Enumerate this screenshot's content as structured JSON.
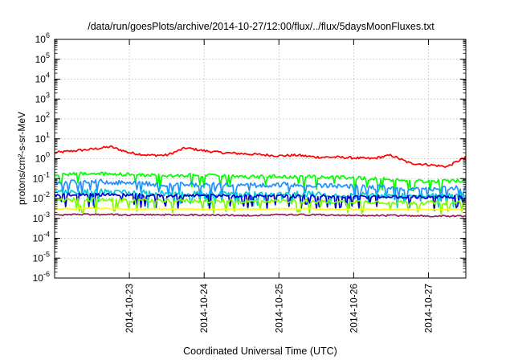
{
  "chart_data": {
    "type": "line",
    "title": "/data/run/goesPlots/archive/2014-10-27/12:00/flux/../flux/5daysMoonFluxes.txt",
    "xlabel": "Coordinated Universal Time (UTC)",
    "ylabel": "protons/cm²-s-sr-MeV",
    "y_scale": "log",
    "ylim": [
      1e-06,
      1000000.0
    ],
    "xlim": [
      "2014-10-22 00:00",
      "2014-10-27 12:00"
    ],
    "y_ticks": [
      {
        "base": "10",
        "exp": "6"
      },
      {
        "base": "10",
        "exp": "5"
      },
      {
        "base": "10",
        "exp": "4"
      },
      {
        "base": "10",
        "exp": "3"
      },
      {
        "base": "10",
        "exp": "2"
      },
      {
        "base": "10",
        "exp": "1"
      },
      {
        "base": "10",
        "exp": "0"
      },
      {
        "base": "10",
        "exp": "-1"
      },
      {
        "base": "10",
        "exp": "-2"
      },
      {
        "base": "10",
        "exp": "-3"
      },
      {
        "base": "10",
        "exp": "-4"
      },
      {
        "base": "10",
        "exp": "-5"
      },
      {
        "base": "10",
        "exp": "-6"
      }
    ],
    "x_ticks": [
      "2014-10-23",
      "2014-10-24",
      "2014-10-25",
      "2014-10-26",
      "2014-10-27"
    ],
    "grid": true,
    "legend": "none",
    "series": [
      {
        "color": "#ff0000",
        "x": [
          "2014-10-22 00:00",
          "2014-10-22 06:00",
          "2014-10-22 12:00",
          "2014-10-22 18:00",
          "2014-10-23 00:00",
          "2014-10-23 06:00",
          "2014-10-23 12:00",
          "2014-10-23 18:00",
          "2014-10-24 00:00",
          "2014-10-24 06:00",
          "2014-10-24 12:00",
          "2014-10-24 18:00",
          "2014-10-25 00:00",
          "2014-10-25 06:00",
          "2014-10-25 12:00",
          "2014-10-25 18:00",
          "2014-10-26 00:00",
          "2014-10-26 06:00",
          "2014-10-26 12:00",
          "2014-10-26 18:00",
          "2014-10-27 00:00",
          "2014-10-27 06:00",
          "2014-10-27 12:00"
        ],
        "y": [
          2.0,
          2.5,
          3.0,
          4.0,
          2.0,
          1.5,
          1.5,
          3.5,
          2.5,
          2.0,
          1.8,
          1.6,
          1.4,
          1.5,
          1.2,
          1.2,
          1.1,
          1.0,
          1.5,
          0.6,
          0.5,
          0.4,
          1.2
        ]
      },
      {
        "color": "#00ff00",
        "x": [
          "2014-10-22 00:00",
          "2014-10-22 12:00",
          "2014-10-23 00:00",
          "2014-10-23 12:00",
          "2014-10-24 00:00",
          "2014-10-24 12:00",
          "2014-10-25 00:00",
          "2014-10-25 12:00",
          "2014-10-26 00:00",
          "2014-10-26 12:00",
          "2014-10-27 00:00",
          "2014-10-27 12:00"
        ],
        "y": [
          0.15,
          0.18,
          0.16,
          0.14,
          0.15,
          0.12,
          0.13,
          0.12,
          0.11,
          0.09,
          0.07,
          0.08
        ]
      },
      {
        "color": "#1e90ff",
        "x": [
          "2014-10-22 00:00",
          "2014-10-22 12:00",
          "2014-10-23 00:00",
          "2014-10-23 12:00",
          "2014-10-24 00:00",
          "2014-10-24 12:00",
          "2014-10-25 00:00",
          "2014-10-25 12:00",
          "2014-10-26 00:00",
          "2014-10-26 12:00",
          "2014-10-27 00:00",
          "2014-10-27 12:00"
        ],
        "y": [
          0.06,
          0.07,
          0.06,
          0.05,
          0.05,
          0.045,
          0.05,
          0.045,
          0.04,
          0.035,
          0.03,
          0.035
        ]
      },
      {
        "color": "#00ced1",
        "x": [
          "2014-10-22 00:00",
          "2014-10-22 12:00",
          "2014-10-23 00:00",
          "2014-10-23 12:00",
          "2014-10-24 00:00",
          "2014-10-24 12:00",
          "2014-10-25 00:00",
          "2014-10-25 12:00",
          "2014-10-26 00:00",
          "2014-10-26 12:00",
          "2014-10-27 00:00",
          "2014-10-27 12:00"
        ],
        "y": [
          0.02,
          0.022,
          0.02,
          0.018,
          0.018,
          0.016,
          0.017,
          0.016,
          0.015,
          0.014,
          0.013,
          0.014
        ]
      },
      {
        "color": "#0000cd",
        "x": [
          "2014-10-22 00:00",
          "2014-10-22 12:00",
          "2014-10-23 00:00",
          "2014-10-23 12:00",
          "2014-10-24 00:00",
          "2014-10-24 12:00",
          "2014-10-25 00:00",
          "2014-10-25 12:00",
          "2014-10-26 00:00",
          "2014-10-26 12:00",
          "2014-10-27 00:00",
          "2014-10-27 12:00"
        ],
        "y": [
          0.015,
          0.016,
          0.015,
          0.014,
          0.014,
          0.013,
          0.013,
          0.013,
          0.012,
          0.012,
          0.012,
          0.012
        ]
      },
      {
        "color": "#7cfc00",
        "x": [
          "2014-10-22 00:00",
          "2014-10-22 12:00",
          "2014-10-23 00:00",
          "2014-10-23 12:00",
          "2014-10-24 00:00",
          "2014-10-24 12:00",
          "2014-10-25 00:00",
          "2014-10-25 12:00",
          "2014-10-26 00:00",
          "2014-10-26 12:00",
          "2014-10-27 00:00",
          "2014-10-27 12:00"
        ],
        "y": [
          0.008,
          0.009,
          0.008,
          0.008,
          0.0075,
          0.007,
          0.0075,
          0.007,
          0.007,
          0.0065,
          0.006,
          0.0065
        ]
      },
      {
        "color": "#ffff00",
        "x": [
          "2014-10-22 00:00",
          "2014-10-22 12:00",
          "2014-10-23 00:00",
          "2014-10-23 12:00",
          "2014-10-24 00:00",
          "2014-10-24 12:00",
          "2014-10-25 00:00",
          "2014-10-25 12:00",
          "2014-10-26 00:00",
          "2014-10-26 12:00",
          "2014-10-27 00:00",
          "2014-10-27 12:00"
        ],
        "y": [
          0.003,
          0.0032,
          0.003,
          0.003,
          0.0029,
          0.0029,
          0.003,
          0.003,
          0.0029,
          0.0028,
          0.0028,
          0.0029
        ]
      },
      {
        "color": "#8b2252",
        "x": [
          "2014-10-22 00:00",
          "2014-10-22 12:00",
          "2014-10-23 00:00",
          "2014-10-23 12:00",
          "2014-10-24 00:00",
          "2014-10-24 12:00",
          "2014-10-25 00:00",
          "2014-10-25 12:00",
          "2014-10-26 00:00",
          "2014-10-26 12:00",
          "2014-10-27 00:00",
          "2014-10-27 12:00"
        ],
        "y": [
          0.0015,
          0.0016,
          0.0015,
          0.0015,
          0.0015,
          0.0014,
          0.0015,
          0.0015,
          0.0014,
          0.0014,
          0.0013,
          0.0013
        ]
      }
    ]
  }
}
